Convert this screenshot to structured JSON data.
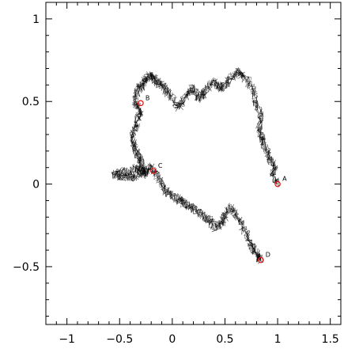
{
  "chart_data": {
    "type": "line",
    "title": "",
    "xlabel": "",
    "ylabel": "",
    "xlim": [
      -1.2,
      1.6
    ],
    "ylim": [
      -0.85,
      1.1
    ],
    "xticks": [
      -1,
      -0.5,
      0,
      0.5,
      1,
      1.5
    ],
    "xtick_labels": [
      "−1",
      "−0.5",
      "0",
      "0.5",
      "1",
      "1.5"
    ],
    "yticks": [
      -0.5,
      0,
      0.5,
      1
    ],
    "ytick_labels": [
      "−0.5",
      "0",
      "0.5",
      "1"
    ],
    "grid": false,
    "legend": false,
    "path_color": "#000000",
    "marker_color": "#e01010",
    "series": [
      {
        "x": [
          1.0,
          0.95,
          0.98,
          0.93,
          0.9,
          0.86,
          0.84,
          0.82,
          0.84,
          0.8,
          0.78,
          0.72,
          0.66,
          0.62,
          0.55,
          0.5,
          0.45,
          0.4,
          0.35,
          0.3,
          0.25,
          0.2,
          0.15,
          0.1,
          0.06,
          0.0,
          -0.05,
          -0.1,
          -0.15,
          -0.18,
          -0.22,
          -0.26,
          -0.28,
          -0.32,
          -0.36,
          -0.34,
          -0.3,
          -0.32,
          -0.35,
          -0.38,
          -0.36,
          -0.33,
          -0.3,
          -0.28,
          -0.26,
          -0.3,
          -0.35,
          -0.4,
          -0.48,
          -0.55,
          -0.5,
          -0.42,
          -0.35,
          -0.25,
          -0.2,
          -0.15,
          -0.1,
          -0.05,
          0.02,
          0.08,
          0.12,
          0.18,
          0.24,
          0.3,
          0.36,
          0.4,
          0.46,
          0.5,
          0.55,
          0.6,
          0.65,
          0.7,
          0.74,
          0.78,
          0.82,
          0.84
        ],
        "y": [
          0.0,
          0.05,
          0.1,
          0.14,
          0.2,
          0.26,
          0.3,
          0.34,
          0.42,
          0.48,
          0.56,
          0.62,
          0.66,
          0.68,
          0.64,
          0.6,
          0.58,
          0.62,
          0.6,
          0.55,
          0.52,
          0.58,
          0.55,
          0.5,
          0.46,
          0.52,
          0.56,
          0.6,
          0.62,
          0.64,
          0.66,
          0.63,
          0.6,
          0.58,
          0.52,
          0.48,
          0.44,
          0.4,
          0.34,
          0.28,
          0.22,
          0.18,
          0.14,
          0.1,
          0.06,
          0.08,
          0.1,
          0.06,
          0.08,
          0.06,
          0.05,
          0.04,
          0.05,
          0.08,
          0.1,
          0.06,
          0.0,
          -0.05,
          -0.08,
          -0.1,
          -0.12,
          -0.14,
          -0.16,
          -0.2,
          -0.22,
          -0.26,
          -0.24,
          -0.2,
          -0.14,
          -0.18,
          -0.24,
          -0.3,
          -0.36,
          -0.4,
          -0.44,
          -0.46
        ]
      }
    ],
    "markers": [
      {
        "label": "A",
        "x": 1.0,
        "y": 0.0
      },
      {
        "label": "B",
        "x": -0.3,
        "y": 0.49
      },
      {
        "label": "C",
        "x": -0.18,
        "y": 0.08
      },
      {
        "label": "D",
        "x": 0.84,
        "y": -0.46
      }
    ]
  }
}
